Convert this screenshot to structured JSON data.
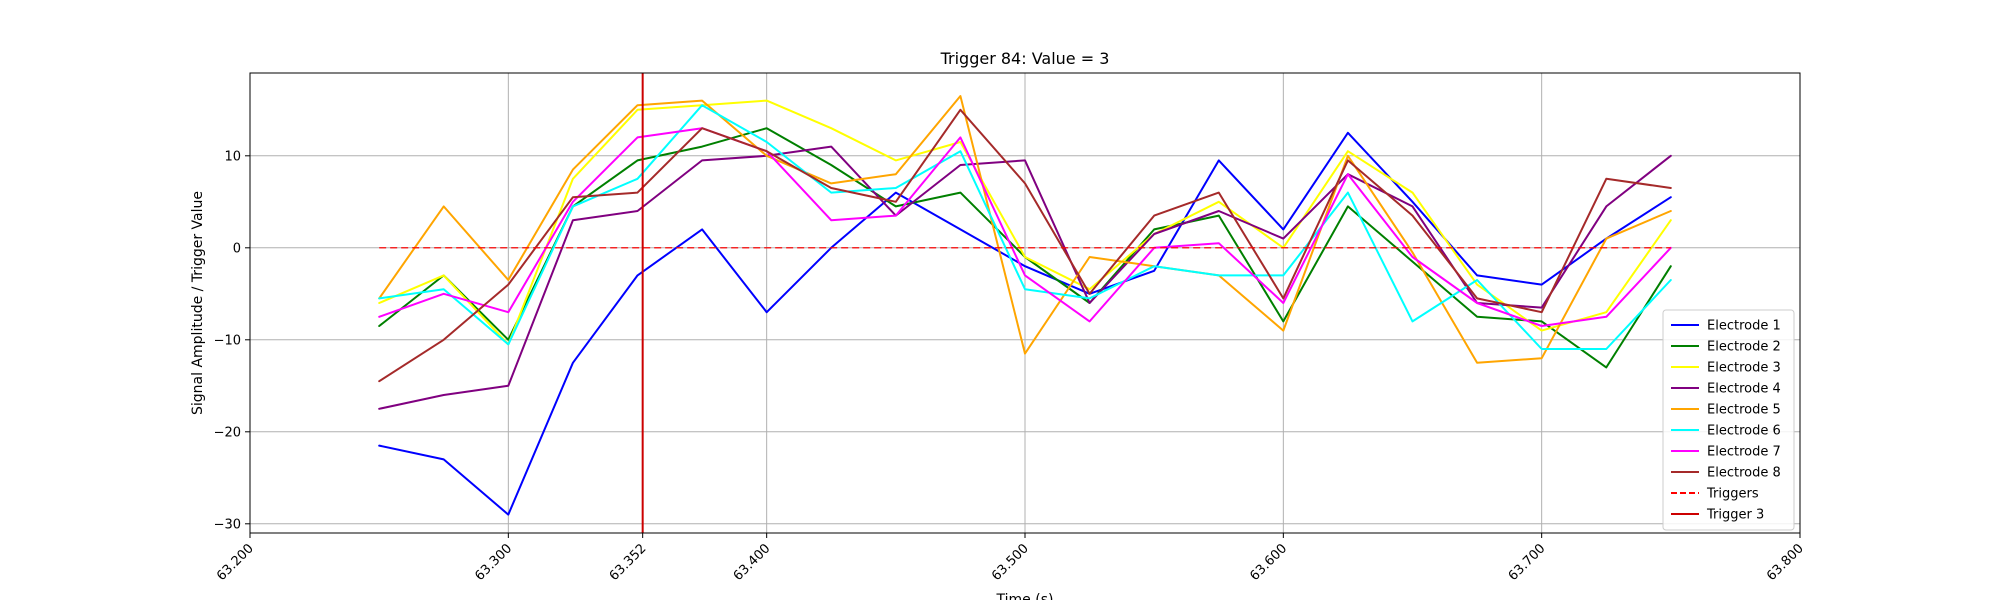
{
  "chart_data": {
    "type": "line",
    "title": "Trigger 84: Value = 3",
    "xlabel": "Time (s)",
    "ylabel": "Signal Amplitude / Trigger Value",
    "xlim": [
      63.2,
      63.8
    ],
    "ylim": [
      -31,
      19
    ],
    "x_ticks": [
      63.2,
      63.3,
      63.352,
      63.4,
      63.5,
      63.6,
      63.7,
      63.8
    ],
    "x_tick_labels": [
      "63.200",
      "63.300",
      "63.352",
      "63.400",
      "63.500",
      "63.600",
      "63.700",
      "63.800"
    ],
    "y_ticks": [
      -30,
      -20,
      -10,
      0,
      10
    ],
    "y_tick_labels": [
      "−30",
      "−20",
      "−10",
      "0",
      "10"
    ],
    "grid": true,
    "legend_position": "lower-right",
    "x": [
      63.25,
      63.275,
      63.3,
      63.325,
      63.35,
      63.375,
      63.4,
      63.425,
      63.45,
      63.475,
      63.5,
      63.525,
      63.55,
      63.575,
      63.6,
      63.625,
      63.65,
      63.675,
      63.7,
      63.725,
      63.75
    ],
    "series": [
      {
        "name": "Electrode 1",
        "color": "#0000ff",
        "values": [
          -21.5,
          -23.0,
          -29.0,
          -12.5,
          -3.0,
          2.0,
          -7.0,
          0.0,
          6.0,
          2.0,
          -2.0,
          -5.0,
          -2.5,
          9.5,
          2.0,
          12.5,
          5.0,
          -3.0,
          -4.0,
          1.0,
          5.5
        ]
      },
      {
        "name": "Electrode 2",
        "color": "#008000",
        "values": [
          -8.5,
          -3.0,
          -10.0,
          4.5,
          9.5,
          11.0,
          13.0,
          9.0,
          4.5,
          6.0,
          -1.0,
          -6.0,
          2.0,
          3.5,
          -8.0,
          4.5,
          -1.5,
          -7.5,
          -8.0,
          -13.0,
          -2.0
        ]
      },
      {
        "name": "Electrode 3",
        "color": "#ffff00",
        "values": [
          -6.0,
          -3.0,
          -10.5,
          7.5,
          15.0,
          15.5,
          16.0,
          13.0,
          9.5,
          11.5,
          -1.0,
          -4.5,
          1.5,
          5.0,
          0.0,
          10.5,
          6.0,
          -4.0,
          -9.0,
          -7.0,
          3.0
        ]
      },
      {
        "name": "Electrode 4",
        "color": "#800080",
        "values": [
          -17.5,
          -16.0,
          -15.0,
          3.0,
          4.0,
          9.5,
          10.0,
          11.0,
          3.5,
          9.0,
          9.5,
          -6.0,
          1.5,
          4.0,
          1.0,
          8.0,
          4.5,
          -6.0,
          -6.5,
          4.5,
          10.0
        ]
      },
      {
        "name": "Electrode 5",
        "color": "#ffa500",
        "values": [
          -5.5,
          4.5,
          -3.5,
          8.5,
          15.5,
          16.0,
          10.0,
          7.0,
          8.0,
          16.5,
          -11.5,
          -1.0,
          -2.0,
          -3.0,
          -9.0,
          10.0,
          -0.5,
          -12.5,
          -12.0,
          1.0,
          4.0
        ]
      },
      {
        "name": "Electrode 6",
        "color": "#00ffff",
        "values": [
          -5.5,
          -4.5,
          -10.5,
          4.5,
          7.5,
          15.5,
          11.5,
          6.0,
          6.5,
          10.5,
          -4.5,
          -5.5,
          -2.0,
          -3.0,
          -3.0,
          6.0,
          -8.0,
          -3.5,
          -11.0,
          -11.0,
          -3.5
        ]
      },
      {
        "name": "Electrode 7",
        "color": "#ff00ff",
        "values": [
          -7.5,
          -5.0,
          -7.0,
          5.0,
          12.0,
          13.0,
          10.5,
          3.0,
          3.5,
          12.0,
          -3.0,
          -8.0,
          0.0,
          0.5,
          -6.0,
          8.0,
          -1.0,
          -6.0,
          -8.5,
          -7.5,
          0.0
        ]
      },
      {
        "name": "Electrode 8",
        "color": "#a52a2a",
        "values": [
          -14.5,
          -10.0,
          -4.0,
          5.5,
          6.0,
          13.0,
          10.5,
          6.5,
          5.0,
          15.0,
          7.0,
          -5.0,
          3.5,
          6.0,
          -5.5,
          9.5,
          3.5,
          -5.5,
          -7.0,
          7.5,
          6.5
        ]
      }
    ],
    "triggers": {
      "name": "Triggers",
      "color": "#ff0000",
      "style": "dashed",
      "y": 0,
      "x_range": [
        63.25,
        63.75
      ]
    },
    "trigger_marker": {
      "name": "Trigger 3",
      "color": "#cc0000",
      "x": 63.352
    }
  }
}
